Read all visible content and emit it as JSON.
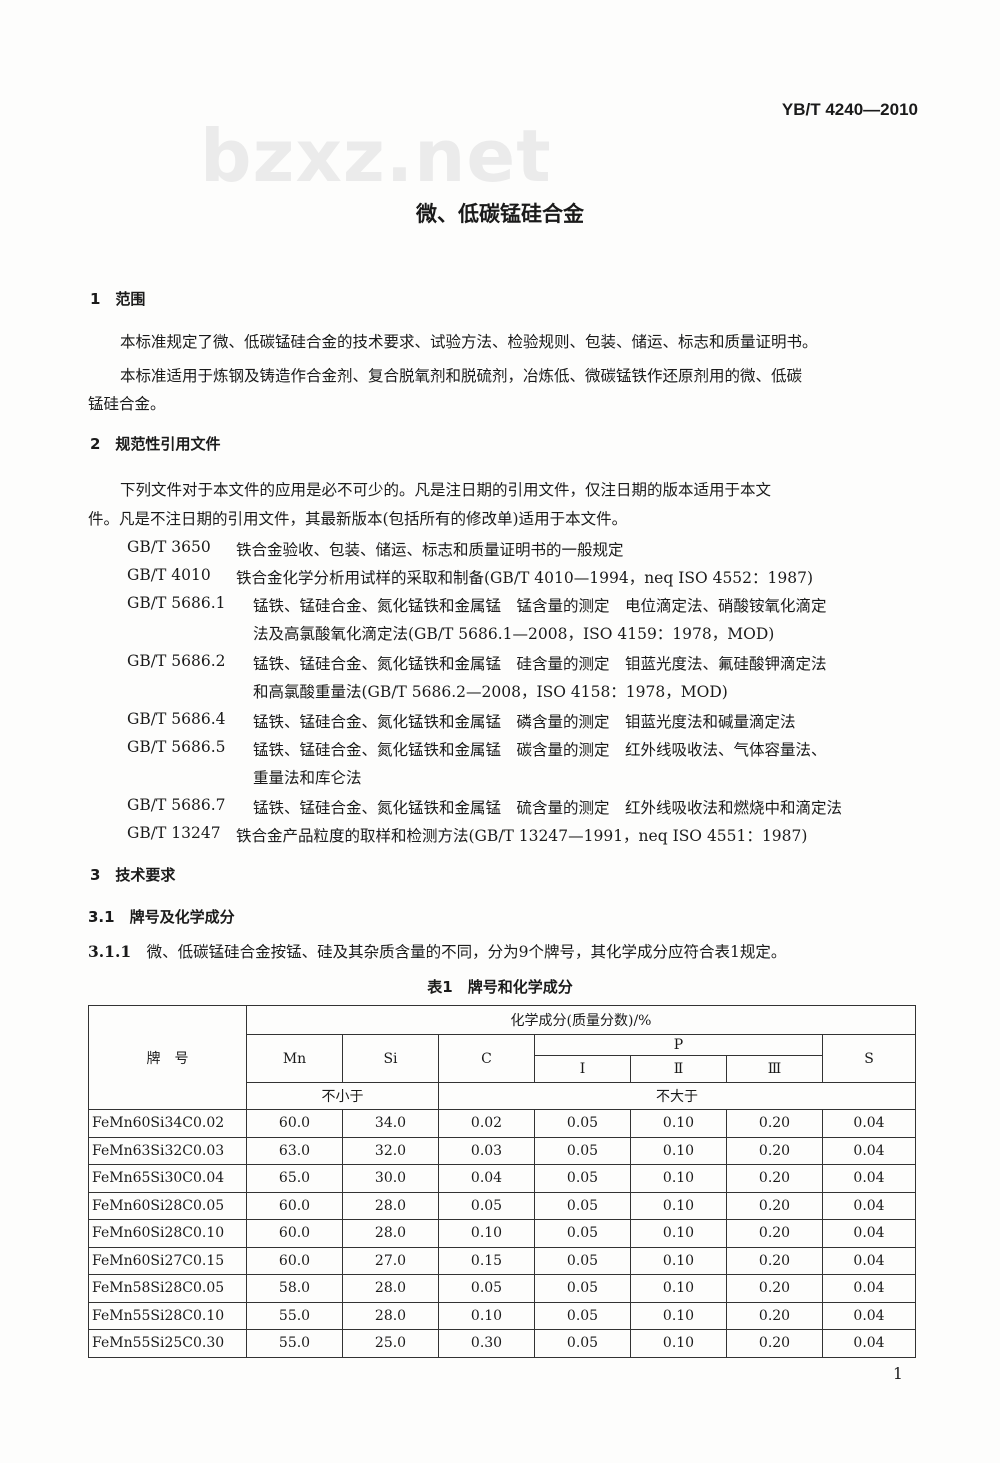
{
  "header": {
    "standard_no": "YB/T 4240—2010",
    "watermark": "bzxz.net"
  },
  "title": "微、低碳锰硅合金",
  "s1": {
    "heading": "1　范围",
    "p1": "本标准规定了微、低碳锰硅合金的技术要求、试验方法、检验规则、包装、储运、标志和质量证明书。",
    "p2a": "本标准适用于炼钢及铸造作合金剂、复合脱氧剂和脱硫剂，冶炼低、微碳锰铁作还原剂用的微、低碳",
    "p2b": "锰硅合金。"
  },
  "s2": {
    "heading": "2　规范性引用文件",
    "p1a": "下列文件对于本文件的应用是必不可少的。凡是注日期的引用文件，仅注日期的版本适用于本文",
    "p1b": "件。凡是不注日期的引用文件，其最新版本(包括所有的修改单)适用于本文件。",
    "refs": [
      {
        "code": "GB/T 3650",
        "lines": [
          "铁合金验收、包装、储运、标志和质量证明书的一般规定"
        ]
      },
      {
        "code": "GB/T 4010",
        "lines": [
          "铁合金化学分析用试样的采取和制备(GB/T 4010—1994，neq ISO 4552：1987)"
        ]
      },
      {
        "code": "GB/T 5686.1",
        "lines": [
          "锰铁、锰硅合金、氮化锰铁和金属锰　锰含量的测定　电位滴定法、硝酸铵氧化滴定",
          "法及高氯酸氧化滴定法(GB/T 5686.1—2008，ISO 4159：1978，MOD)"
        ]
      },
      {
        "code": "GB/T 5686.2",
        "lines": [
          "锰铁、锰硅合金、氮化锰铁和金属锰　硅含量的测定　钼蓝光度法、氟硅酸钾滴定法",
          "和高氯酸重量法(GB/T 5686.2—2008，ISO 4158：1978，MOD)"
        ]
      },
      {
        "code": "GB/T 5686.4",
        "lines": [
          "锰铁、锰硅合金、氮化锰铁和金属锰　磷含量的测定　钼蓝光度法和碱量滴定法"
        ]
      },
      {
        "code": "GB/T 5686.5",
        "lines": [
          "锰铁、锰硅合金、氮化锰铁和金属锰　碳含量的测定　红外线吸收法、气体容量法、",
          "重量法和库仑法"
        ]
      },
      {
        "code": "GB/T 5686.7",
        "lines": [
          "锰铁、锰硅合金、氮化锰铁和金属锰　硫含量的测定　红外线吸收法和燃烧中和滴定法"
        ]
      },
      {
        "code": "GB/T 13247",
        "lines": [
          "铁合金产品粒度的取样和检测方法(GB/T 13247—1991，neq ISO 4551：1987)"
        ]
      }
    ]
  },
  "s3": {
    "heading": "3　技术要求",
    "s31": "3.1　牌号及化学成分",
    "s311_no": "3.1.1",
    "s311": "微、低碳锰硅合金按锰、硅及其杂质含量的不同，分为9个牌号，其化学成分应符合表1规定。"
  },
  "table": {
    "caption": "表1　牌号和化学成分",
    "brand": "牌　号",
    "group": "化学成分(质量分数)/%",
    "cols": [
      "Mn",
      "Si",
      "C",
      "P",
      "S"
    ],
    "p_sub": [
      "Ⅰ",
      "Ⅱ",
      "Ⅲ"
    ],
    "min": "不小于",
    "max": "不大于",
    "rows": [
      [
        "FeMn60Si34C0.02",
        "60.0",
        "34.0",
        "0.02",
        "0.05",
        "0.10",
        "0.20",
        "0.04"
      ],
      [
        "FeMn63Si32C0.03",
        "63.0",
        "32.0",
        "0.03",
        "0.05",
        "0.10",
        "0.20",
        "0.04"
      ],
      [
        "FeMn65Si30C0.04",
        "65.0",
        "30.0",
        "0.04",
        "0.05",
        "0.10",
        "0.20",
        "0.04"
      ],
      [
        "FeMn60Si28C0.05",
        "60.0",
        "28.0",
        "0.05",
        "0.05",
        "0.10",
        "0.20",
        "0.04"
      ],
      [
        "FeMn60Si28C0.10",
        "60.0",
        "28.0",
        "0.10",
        "0.05",
        "0.10",
        "0.20",
        "0.04"
      ],
      [
        "FeMn60Si27C0.15",
        "60.0",
        "27.0",
        "0.15",
        "0.05",
        "0.10",
        "0.20",
        "0.04"
      ],
      [
        "FeMn58Si28C0.05",
        "58.0",
        "28.0",
        "0.05",
        "0.05",
        "0.10",
        "0.20",
        "0.04"
      ],
      [
        "FeMn55Si28C0.10",
        "55.0",
        "28.0",
        "0.10",
        "0.05",
        "0.10",
        "0.20",
        "0.04"
      ],
      [
        "FeMn55Si25C0.30",
        "55.0",
        "25.0",
        "0.30",
        "0.05",
        "0.10",
        "0.20",
        "0.04"
      ]
    ]
  },
  "page_number": "1"
}
